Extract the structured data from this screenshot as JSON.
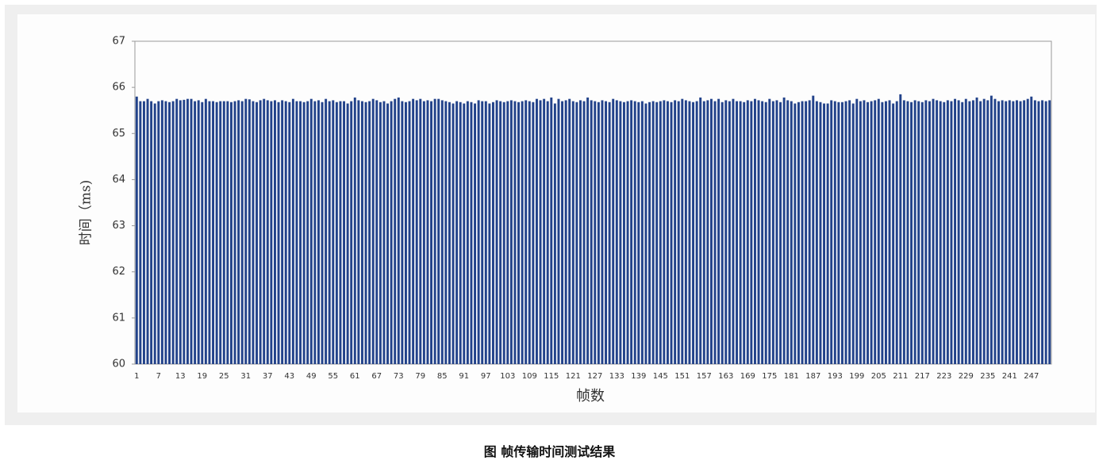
{
  "chart_data": {
    "type": "bar",
    "caption": "图 帧传输时间测试结果",
    "y_label": "时间（ms)",
    "x_label": "帧数",
    "color": "#22428a",
    "ylim": [
      60,
      67
    ],
    "yticks": [
      60,
      61,
      62,
      63,
      64,
      65,
      66,
      67
    ],
    "categories": [
      "1",
      null,
      null,
      null,
      null,
      null,
      "7",
      null,
      null,
      null,
      null,
      null,
      "13",
      null,
      null,
      null,
      null,
      null,
      "19",
      null,
      null,
      null,
      null,
      null,
      "25",
      null,
      null,
      null,
      null,
      null,
      "31",
      null,
      null,
      null,
      null,
      null,
      "37",
      null,
      null,
      null,
      null,
      null,
      "43",
      null,
      null,
      null,
      null,
      null,
      "49",
      null,
      null,
      null,
      null,
      null,
      "55",
      null,
      null,
      null,
      null,
      null,
      "61",
      null,
      null,
      null,
      null,
      null,
      "67",
      null,
      null,
      null,
      null,
      null,
      "73",
      null,
      null,
      null,
      null,
      null,
      "79",
      null,
      null,
      null,
      null,
      null,
      "85",
      null,
      null,
      null,
      null,
      null,
      "91",
      null,
      null,
      null,
      null,
      null,
      "97",
      null,
      null,
      null,
      null,
      null,
      "103",
      null,
      null,
      null,
      null,
      null,
      "109",
      null,
      null,
      null,
      null,
      null,
      "115",
      null,
      null,
      null,
      null,
      null,
      "121",
      null,
      null,
      null,
      null,
      null,
      "127",
      null,
      null,
      null,
      null,
      null,
      "133",
      null,
      null,
      null,
      null,
      null,
      "139",
      null,
      null,
      null,
      null,
      null,
      "145",
      null,
      null,
      null,
      null,
      null,
      "151",
      null,
      null,
      null,
      null,
      null,
      "157",
      null,
      null,
      null,
      null,
      null,
      "163",
      null,
      null,
      null,
      null,
      null,
      "169",
      null,
      null,
      null,
      null,
      null,
      "175",
      null,
      null,
      null,
      null,
      null,
      "181",
      null,
      null,
      null,
      null,
      null,
      "187",
      null,
      null,
      null,
      null,
      null,
      "193",
      null,
      null,
      null,
      null,
      null,
      "199",
      null,
      null,
      null,
      null,
      null,
      "205",
      null,
      null,
      null,
      null,
      null,
      "211",
      null,
      null,
      null,
      null,
      null,
      "217",
      null,
      null,
      null,
      null,
      null,
      "223",
      null,
      null,
      null,
      null,
      null,
      "229",
      null,
      null,
      null,
      null,
      null,
      "235",
      null,
      null,
      null,
      null,
      null,
      "241",
      null,
      null,
      null,
      null,
      null,
      "247",
      null,
      null,
      null,
      null,
      null
    ],
    "values": [
      65.8,
      65.7,
      65.7,
      65.75,
      65.7,
      65.65,
      65.7,
      65.72,
      65.7,
      65.68,
      65.7,
      65.75,
      65.72,
      65.73,
      65.75,
      65.75,
      65.7,
      65.72,
      65.68,
      65.75,
      65.7,
      65.7,
      65.68,
      65.7,
      65.7,
      65.7,
      65.68,
      65.7,
      65.72,
      65.7,
      65.75,
      65.74,
      65.7,
      65.68,
      65.72,
      65.75,
      65.72,
      65.7,
      65.72,
      65.68,
      65.72,
      65.7,
      65.68,
      65.75,
      65.7,
      65.7,
      65.68,
      65.7,
      65.75,
      65.7,
      65.72,
      65.68,
      65.75,
      65.7,
      65.72,
      65.68,
      65.7,
      65.7,
      65.65,
      65.7,
      65.78,
      65.72,
      65.7,
      65.68,
      65.7,
      65.75,
      65.72,
      65.68,
      65.7,
      65.65,
      65.7,
      65.75,
      65.78,
      65.7,
      65.68,
      65.7,
      65.75,
      65.72,
      65.75,
      65.7,
      65.72,
      65.7,
      65.75,
      65.75,
      65.72,
      65.7,
      65.68,
      65.65,
      65.7,
      65.68,
      65.65,
      65.7,
      65.68,
      65.65,
      65.72,
      65.7,
      65.7,
      65.65,
      65.68,
      65.72,
      65.7,
      65.68,
      65.7,
      65.72,
      65.7,
      65.68,
      65.7,
      65.72,
      65.7,
      65.68,
      65.75,
      65.72,
      65.75,
      65.7,
      65.78,
      65.65,
      65.75,
      65.7,
      65.72,
      65.75,
      65.7,
      65.68,
      65.72,
      65.7,
      65.78,
      65.72,
      65.7,
      65.68,
      65.72,
      65.7,
      65.68,
      65.75,
      65.72,
      65.7,
      65.68,
      65.7,
      65.72,
      65.7,
      65.68,
      65.7,
      65.65,
      65.68,
      65.7,
      65.68,
      65.7,
      65.72,
      65.7,
      65.68,
      65.72,
      65.7,
      65.75,
      65.72,
      65.7,
      65.68,
      65.7,
      65.78,
      65.7,
      65.72,
      65.75,
      65.7,
      65.75,
      65.68,
      65.72,
      65.7,
      65.75,
      65.7,
      65.7,
      65.68,
      65.72,
      65.7,
      65.75,
      65.72,
      65.7,
      65.68,
      65.75,
      65.7,
      65.72,
      65.68,
      65.78,
      65.72,
      65.7,
      65.65,
      65.68,
      65.7,
      65.7,
      65.72,
      65.82,
      65.7,
      65.68,
      65.65,
      65.65,
      65.72,
      65.7,
      65.68,
      65.68,
      65.7,
      65.72,
      65.65,
      65.75,
      65.7,
      65.72,
      65.68,
      65.7,
      65.72,
      65.75,
      65.68,
      65.7,
      65.72,
      65.65,
      65.7,
      65.85,
      65.72,
      65.7,
      65.68,
      65.72,
      65.7,
      65.68,
      65.72,
      65.7,
      65.75,
      65.72,
      65.7,
      65.68,
      65.72,
      65.7,
      65.75,
      65.72,
      65.68,
      65.75,
      65.7,
      65.72,
      65.78,
      65.7,
      65.75,
      65.72,
      65.82,
      65.75,
      65.7,
      65.72,
      65.7,
      65.72,
      65.7,
      65.72,
      65.7,
      65.72,
      65.75,
      65.8,
      65.72,
      65.7,
      65.72,
      65.7,
      65.72
    ]
  }
}
